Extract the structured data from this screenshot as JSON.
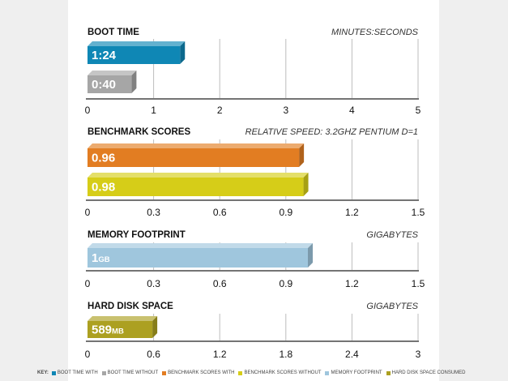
{
  "colors": {
    "boot_with": "#0f87b5",
    "boot_without": "#a6a6a6",
    "bench_with": "#e27d22",
    "bench_without": "#d6cd18",
    "memory": "#9fc6dd",
    "disk": "#aca021",
    "grid": "#bdbdbd",
    "axis": "#222222",
    "text": "#111111"
  },
  "chart_data": [
    {
      "type": "bar",
      "orientation": "horizontal",
      "title": "BOOT TIME",
      "unit_label": "MINUTES:SECONDS",
      "xlim": [
        0,
        5
      ],
      "ticks": [
        "0",
        "1",
        "2",
        "3",
        "4",
        "5"
      ],
      "tick_values": [
        0,
        1,
        2,
        3,
        4,
        5
      ],
      "series": [
        {
          "name": "BOOT TIME WITH",
          "value": 1.4,
          "label": "1:24",
          "suffix": "",
          "color_key": "boot_with"
        },
        {
          "name": "BOOT TIME WITHOUT",
          "value": 0.6667,
          "label": "0:40",
          "suffix": "",
          "color_key": "boot_without"
        }
      ]
    },
    {
      "type": "bar",
      "orientation": "horizontal",
      "title": "BENCHMARK SCORES",
      "unit_label": "RELATIVE SPEED: 3.2GHZ PENTIUM D=1",
      "xlim": [
        0,
        1.5
      ],
      "ticks": [
        "0",
        "0.3",
        "0.6",
        "0.9",
        "1.2",
        "1.5"
      ],
      "tick_values": [
        0,
        0.3,
        0.6,
        0.9,
        1.2,
        1.5
      ],
      "series": [
        {
          "name": "BENCHMARK SCORES WITH",
          "value": 0.96,
          "label": "0.96",
          "suffix": "",
          "color_key": "bench_with"
        },
        {
          "name": "BENCHMARK SCORES WITHOUT",
          "value": 0.98,
          "label": "0.98",
          "suffix": "",
          "color_key": "bench_without"
        }
      ]
    },
    {
      "type": "bar",
      "orientation": "horizontal",
      "title": "MEMORY FOOTPRINT",
      "unit_label": "GIGABYTES",
      "xlim": [
        0,
        1.5
      ],
      "ticks": [
        "0",
        "0.3",
        "0.6",
        "0.9",
        "1.2",
        "1.5"
      ],
      "tick_values": [
        0,
        0.3,
        0.6,
        0.9,
        1.2,
        1.5
      ],
      "series": [
        {
          "name": "MEMORY FOOTPRINT",
          "value": 1.0,
          "label": "1",
          "suffix": "GB",
          "color_key": "memory"
        }
      ]
    },
    {
      "type": "bar",
      "orientation": "horizontal",
      "title": "HARD DISK SPACE",
      "unit_label": "GIGABYTES",
      "xlim": [
        0,
        3
      ],
      "ticks": [
        "0",
        "0.6",
        "1.2",
        "1.8",
        "2.4",
        "3"
      ],
      "tick_values": [
        0,
        0.6,
        1.2,
        1.8,
        2.4,
        3
      ],
      "series": [
        {
          "name": "HARD DISK SPACE CONSUMED",
          "value": 0.589,
          "label": "589",
          "suffix": "MB",
          "color_key": "disk"
        }
      ]
    }
  ],
  "legend": {
    "title": "KEY:",
    "items": [
      {
        "label": "BOOT TIME WITH",
        "color_key": "boot_with"
      },
      {
        "label": "BOOT TIME WITHOUT",
        "color_key": "boot_without"
      },
      {
        "label": "BENCHMARK SCORES WITH",
        "color_key": "bench_with"
      },
      {
        "label": "BENCHMARK SCORES WITHOUT",
        "color_key": "bench_without"
      },
      {
        "label": "MEMORY FOOTPRINT",
        "color_key": "memory"
      },
      {
        "label": "HARD DISK SPACE CONSUMED",
        "color_key": "disk"
      }
    ]
  }
}
